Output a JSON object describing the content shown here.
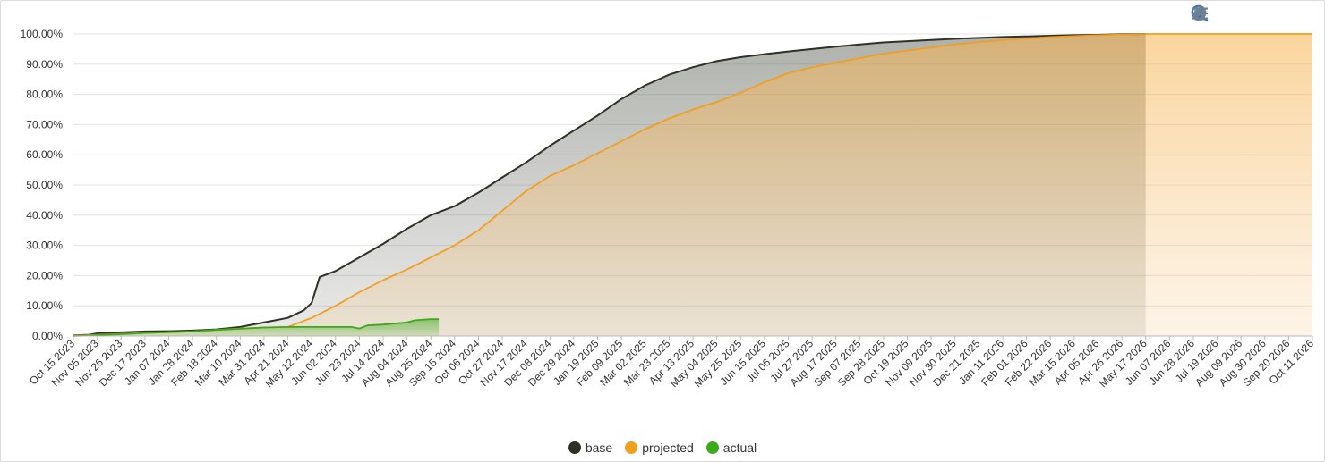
{
  "toolbar": {
    "icons": [
      "zoom-in-icon",
      "zoom-out-icon",
      "zoom-select-icon",
      "pan-hand-icon",
      "home-reset-icon",
      "menu-icon"
    ]
  },
  "colors": {
    "base": "#2f3127",
    "projected": "#f29e1f",
    "actual": "#3aaa1a",
    "grid": "#e3e3e3"
  },
  "chart_data": {
    "type": "area",
    "ylim": [
      0,
      100
    ],
    "yticks": [
      "0.00%",
      "10.00%",
      "20.00%",
      "30.00%",
      "40.00%",
      "50.00%",
      "60.00%",
      "70.00%",
      "80.00%",
      "90.00%",
      "100.00%"
    ],
    "xticks": [
      "Oct 15 2023",
      "Nov 05 2023",
      "Nov 26 2023",
      "Dec 17 2023",
      "Jan 07 2024",
      "Jan 28 2024",
      "Feb 18 2024",
      "Mar 10 2024",
      "Mar 31 2024",
      "Apr 21 2024",
      "May 12 2024",
      "Jun 02 2024",
      "Jun 23 2024",
      "Jul 14 2024",
      "Aug 04 2024",
      "Aug 25 2024",
      "Sep 15 2024",
      "Oct 06 2024",
      "Oct 27 2024",
      "Nov 17 2024",
      "Dec 08 2024",
      "Dec 29 2024",
      "Jan 19 2025",
      "Feb 09 2025",
      "Mar 02 2025",
      "Mar 23 2025",
      "Apr 13 2025",
      "May 04 2025",
      "May 25 2025",
      "Jun 15 2025",
      "Jul 06 2025",
      "Jul 27 2025",
      "Aug 17 2025",
      "Sep 07 2025",
      "Sep 28 2025",
      "Oct 19 2025",
      "Nov 09 2025",
      "Nov 30 2025",
      "Dec 21 2025",
      "Jan 11 2026",
      "Feb 01 2026",
      "Feb 22 2026",
      "Mar 15 2026",
      "Apr 05 2026",
      "Apr 26 2026",
      "May 17 2026",
      "Jun 07 2026",
      "Jun 28 2026",
      "Jul 19 2026",
      "Aug 09 2026",
      "Aug 30 2026",
      "Sep 20 2026",
      "Oct 11 2026"
    ],
    "legend": {
      "position": "bottom"
    },
    "series": [
      {
        "name": "base",
        "points": [
          [
            "Oct 15 2023",
            0.2
          ],
          [
            "Oct 29 2023",
            0.4
          ],
          [
            "Nov 05 2023",
            0.9
          ],
          [
            "Nov 26 2023",
            1.2
          ],
          [
            "Dec 17 2023",
            1.5
          ],
          [
            "Jan 07 2024",
            1.6
          ],
          [
            "Jan 28 2024",
            1.8
          ],
          [
            "Feb 18 2024",
            2.2
          ],
          [
            "Mar 10 2024",
            3.0
          ],
          [
            "Mar 24 2024",
            4.0
          ],
          [
            "Apr 07 2024",
            5.0
          ],
          [
            "Apr 21 2024",
            6.0
          ],
          [
            "May 05 2024",
            8.5
          ],
          [
            "May 12 2024",
            11.0
          ],
          [
            "May 19 2024",
            19.5
          ],
          [
            "Jun 02 2024",
            21.5
          ],
          [
            "Jun 23 2024",
            26.0
          ],
          [
            "Jul 14 2024",
            30.5
          ],
          [
            "Aug 04 2024",
            35.5
          ],
          [
            "Aug 25 2024",
            40.0
          ],
          [
            "Sep 15 2024",
            43.0
          ],
          [
            "Oct 06 2024",
            47.5
          ],
          [
            "Oct 27 2024",
            52.5
          ],
          [
            "Nov 17 2024",
            57.5
          ],
          [
            "Dec 08 2024",
            63.0
          ],
          [
            "Dec 29 2024",
            68.0
          ],
          [
            "Jan 19 2025",
            73.0
          ],
          [
            "Feb 09 2025",
            78.5
          ],
          [
            "Mar 02 2025",
            83.0
          ],
          [
            "Mar 23 2025",
            86.5
          ],
          [
            "Apr 13 2025",
            89.0
          ],
          [
            "May 04 2025",
            91.0
          ],
          [
            "May 25 2025",
            92.3
          ],
          [
            "Jun 15 2025",
            93.3
          ],
          [
            "Jul 06 2025",
            94.2
          ],
          [
            "Jul 27 2025",
            95.0
          ],
          [
            "Aug 17 2025",
            95.8
          ],
          [
            "Sep 07 2025",
            96.5
          ],
          [
            "Sep 28 2025",
            97.2
          ],
          [
            "Oct 19 2025",
            97.6
          ],
          [
            "Nov 09 2025",
            98.0
          ],
          [
            "Nov 30 2025",
            98.4
          ],
          [
            "Dec 21 2025",
            98.7
          ],
          [
            "Jan 11 2026",
            99.0
          ],
          [
            "Feb 01 2026",
            99.2
          ],
          [
            "Feb 22 2026",
            99.4
          ],
          [
            "Mar 15 2026",
            99.6
          ],
          [
            "Apr 05 2026",
            99.7
          ],
          [
            "Apr 26 2026",
            99.9
          ],
          [
            "May 17 2026",
            100.0
          ]
        ]
      },
      {
        "name": "projected",
        "points": [
          [
            "Oct 15 2023",
            0.1
          ],
          [
            "Nov 05 2023",
            0.4
          ],
          [
            "Nov 26 2023",
            0.7
          ],
          [
            "Dec 17 2023",
            1.0
          ],
          [
            "Jan 07 2024",
            1.2
          ],
          [
            "Jan 28 2024",
            1.5
          ],
          [
            "Feb 18 2024",
            2.0
          ],
          [
            "Mar 10 2024",
            2.5
          ],
          [
            "Mar 31 2024",
            2.8
          ],
          [
            "Apr 21 2024",
            3.0
          ],
          [
            "May 12 2024",
            6.0
          ],
          [
            "Jun 02 2024",
            10.0
          ],
          [
            "Jun 23 2024",
            14.5
          ],
          [
            "Jul 14 2024",
            18.5
          ],
          [
            "Aug 04 2024",
            22.0
          ],
          [
            "Aug 25 2024",
            26.0
          ],
          [
            "Sep 15 2024",
            30.0
          ],
          [
            "Oct 06 2024",
            35.0
          ],
          [
            "Oct 27 2024",
            41.5
          ],
          [
            "Nov 17 2024",
            48.0
          ],
          [
            "Dec 08 2024",
            53.0
          ],
          [
            "Dec 29 2024",
            56.5
          ],
          [
            "Jan 19 2025",
            60.5
          ],
          [
            "Feb 09 2025",
            64.5
          ],
          [
            "Mar 02 2025",
            68.5
          ],
          [
            "Mar 23 2025",
            72.0
          ],
          [
            "Apr 13 2025",
            75.0
          ],
          [
            "May 04 2025",
            77.5
          ],
          [
            "May 25 2025",
            80.5
          ],
          [
            "Jun 15 2025",
            84.0
          ],
          [
            "Jul 06 2025",
            87.0
          ],
          [
            "Jul 27 2025",
            89.0
          ],
          [
            "Aug 17 2025",
            90.5
          ],
          [
            "Sep 07 2025",
            92.0
          ],
          [
            "Sep 28 2025",
            93.5
          ],
          [
            "Oct 19 2025",
            94.5
          ],
          [
            "Nov 09 2025",
            95.5
          ],
          [
            "Nov 30 2025",
            96.5
          ],
          [
            "Dec 21 2025",
            97.3
          ],
          [
            "Jan 11 2026",
            98.0
          ],
          [
            "Feb 01 2026",
            98.5
          ],
          [
            "Feb 22 2026",
            99.0
          ],
          [
            "Mar 15 2026",
            99.3
          ],
          [
            "Apr 05 2026",
            99.6
          ],
          [
            "Apr 26 2026",
            99.8
          ],
          [
            "May 17 2026",
            100.0
          ],
          [
            "Oct 11 2026",
            100.0
          ]
        ]
      },
      {
        "name": "actual",
        "points": [
          [
            "Oct 15 2023",
            0.0
          ],
          [
            "Nov 05 2023",
            0.3
          ],
          [
            "Nov 26 2023",
            0.6
          ],
          [
            "Dec 17 2023",
            1.0
          ],
          [
            "Jan 07 2024",
            1.3
          ],
          [
            "Jan 28 2024",
            1.5
          ],
          [
            "Feb 18 2024",
            2.0
          ],
          [
            "Mar 10 2024",
            2.4
          ],
          [
            "Mar 31 2024",
            2.8
          ],
          [
            "Apr 21 2024",
            3.0
          ],
          [
            "May 12 2024",
            3.0
          ],
          [
            "Jun 02 2024",
            3.0
          ],
          [
            "Jun 16 2024",
            3.0
          ],
          [
            "Jun 23 2024",
            2.5
          ],
          [
            "Jun 30 2024",
            3.5
          ],
          [
            "Jul 14 2024",
            3.8
          ],
          [
            "Aug 04 2024",
            4.5
          ],
          [
            "Aug 11 2024",
            5.2
          ],
          [
            "Aug 25 2024",
            5.6
          ],
          [
            "Sep 01 2024",
            5.6
          ]
        ]
      }
    ]
  }
}
